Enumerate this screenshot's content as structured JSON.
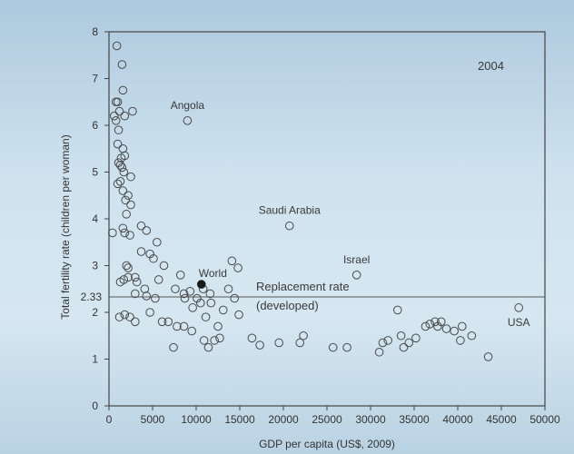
{
  "colors": {
    "background_top": "#aec9de",
    "background_bottom": "#d6e7f1",
    "axis": "#444444",
    "marker": "#4a4a4a",
    "world_marker": "#1a1a1a"
  },
  "chart_data": {
    "type": "scatter",
    "year_label": "2004",
    "xlabel": "GDP per capita (US$, 2009)",
    "ylabel": "Total fertility rate (children per woman)",
    "xlim": [
      0,
      50000
    ],
    "ylim": [
      0,
      8
    ],
    "xticks": [
      "0",
      "5000",
      "10000",
      "15000",
      "20000",
      "25000",
      "30000",
      "35000",
      "40000",
      "45000",
      "50000"
    ],
    "yticks": [
      "0",
      "1",
      "2",
      "3",
      "4",
      "5",
      "6",
      "7",
      "8"
    ],
    "replacement_rate": {
      "value": 2.33,
      "label": "2.33",
      "text_line1": "Replacement rate",
      "text_line2": "(developed)"
    },
    "labeled_points": [
      {
        "label": "Angola",
        "x": 9000,
        "y": 6.1
      },
      {
        "label": "Saudi Arabia",
        "x": 20700,
        "y": 3.85
      },
      {
        "label": "Israel",
        "x": 28400,
        "y": 2.8
      },
      {
        "label": "USA",
        "x": 47000,
        "y": 2.1
      },
      {
        "label": "World",
        "x": 10600,
        "y": 2.6,
        "filled": true
      }
    ],
    "points": [
      [
        900,
        7.7
      ],
      [
        1500,
        7.3
      ],
      [
        1600,
        6.75
      ],
      [
        800,
        6.5
      ],
      [
        1000,
        6.5
      ],
      [
        1200,
        6.3
      ],
      [
        2700,
        6.3
      ],
      [
        1800,
        6.2
      ],
      [
        600,
        6.2
      ],
      [
        800,
        6.1
      ],
      [
        1100,
        5.9
      ],
      [
        1000,
        5.6
      ],
      [
        1600,
        5.5
      ],
      [
        1400,
        5.3
      ],
      [
        1800,
        5.35
      ],
      [
        1100,
        5.2
      ],
      [
        1300,
        5.15
      ],
      [
        1500,
        5.1
      ],
      [
        1700,
        5.0
      ],
      [
        2500,
        4.9
      ],
      [
        1300,
        4.8
      ],
      [
        1000,
        4.75
      ],
      [
        1600,
        4.6
      ],
      [
        2200,
        4.5
      ],
      [
        1900,
        4.4
      ],
      [
        2500,
        4.3
      ],
      [
        2000,
        4.1
      ],
      [
        1600,
        3.8
      ],
      [
        1800,
        3.7
      ],
      [
        2400,
        3.65
      ],
      [
        3700,
        3.85
      ],
      [
        4300,
        3.75
      ],
      [
        400,
        3.7
      ],
      [
        5500,
        3.5
      ],
      [
        3700,
        3.3
      ],
      [
        4700,
        3.25
      ],
      [
        5100,
        3.15
      ],
      [
        6300,
        3.0
      ],
      [
        2000,
        3.0
      ],
      [
        2200,
        2.95
      ],
      [
        3000,
        2.75
      ],
      [
        2200,
        2.75
      ],
      [
        1700,
        2.7
      ],
      [
        1300,
        2.65
      ],
      [
        3200,
        2.65
      ],
      [
        5700,
        2.7
      ],
      [
        4100,
        2.5
      ],
      [
        7600,
        2.5
      ],
      [
        8200,
        2.8
      ],
      [
        8600,
        2.4
      ],
      [
        9300,
        2.45
      ],
      [
        10800,
        2.5
      ],
      [
        11600,
        2.4
      ],
      [
        14100,
        3.1
      ],
      [
        14800,
        2.95
      ],
      [
        13700,
        2.5
      ],
      [
        14400,
        2.3
      ],
      [
        3000,
        2.4
      ],
      [
        4300,
        2.35
      ],
      [
        5300,
        2.3
      ],
      [
        8700,
        2.3
      ],
      [
        10100,
        2.3
      ],
      [
        10500,
        2.2
      ],
      [
        11700,
        2.2
      ],
      [
        9600,
        2.1
      ],
      [
        13100,
        2.05
      ],
      [
        14900,
        1.95
      ],
      [
        1200,
        1.9
      ],
      [
        1800,
        1.95
      ],
      [
        2400,
        1.9
      ],
      [
        3000,
        1.8
      ],
      [
        4700,
        2.0
      ],
      [
        11100,
        1.9
      ],
      [
        6100,
        1.8
      ],
      [
        6800,
        1.8
      ],
      [
        7800,
        1.7
      ],
      [
        8600,
        1.7
      ],
      [
        9500,
        1.6
      ],
      [
        12500,
        1.7
      ],
      [
        7400,
        1.25
      ],
      [
        10900,
        1.4
      ],
      [
        11400,
        1.25
      ],
      [
        12100,
        1.4
      ],
      [
        12700,
        1.45
      ],
      [
        16400,
        1.45
      ],
      [
        17300,
        1.3
      ],
      [
        19500,
        1.35
      ],
      [
        21900,
        1.35
      ],
      [
        22300,
        1.5
      ],
      [
        25700,
        1.25
      ],
      [
        27300,
        1.25
      ],
      [
        31000,
        1.15
      ],
      [
        31400,
        1.35
      ],
      [
        32000,
        1.4
      ],
      [
        33100,
        2.05
      ],
      [
        33500,
        1.5
      ],
      [
        33800,
        1.25
      ],
      [
        34400,
        1.35
      ],
      [
        35200,
        1.45
      ],
      [
        36300,
        1.7
      ],
      [
        36800,
        1.75
      ],
      [
        37400,
        1.8
      ],
      [
        38100,
        1.8
      ],
      [
        37700,
        1.7
      ],
      [
        38700,
        1.65
      ],
      [
        39600,
        1.6
      ],
      [
        40300,
        1.4
      ],
      [
        40500,
        1.7
      ],
      [
        41600,
        1.5
      ],
      [
        43500,
        1.05
      ]
    ]
  }
}
